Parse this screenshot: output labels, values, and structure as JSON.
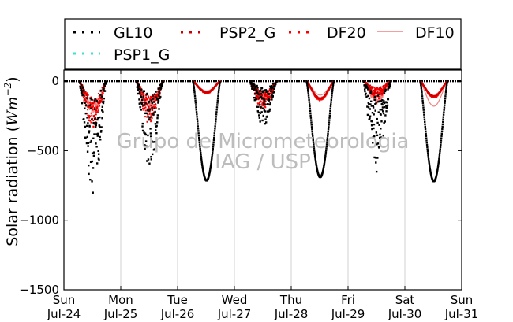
{
  "chart_data": {
    "type": "scatter",
    "ylabel_text": "Solar radiation (",
    "ylabel_unit": "Wm",
    "ylabel_exp": "−2",
    "ylabel_close": ")",
    "ylim": [
      -1500,
      80
    ],
    "yticks": [
      0,
      -500,
      -1000,
      -1500
    ],
    "ytick_labels": [
      "0",
      "−500",
      "−1000",
      "−1500"
    ],
    "xlim": [
      0,
      7
    ],
    "xticks": [
      0,
      1,
      2,
      3,
      4,
      5,
      6,
      7
    ],
    "xtick_labels": [
      [
        "Sun",
        "Jul-24"
      ],
      [
        "Mon",
        "Jul-25"
      ],
      [
        "Tue",
        "Jul-26"
      ],
      [
        "Wed",
        "Jul-27"
      ],
      [
        "Thu",
        "Jul-28"
      ],
      [
        "Fri",
        "Jul-29"
      ],
      [
        "Sat",
        "Jul-30"
      ],
      [
        "Sun",
        "Jul-31"
      ]
    ],
    "grid": "vertical",
    "legend_position": "top (outside plot)",
    "watermark": [
      "Grupo de Micrometeorologia",
      "IAG / USP"
    ],
    "series": [
      {
        "name": "GL10",
        "color": "#000000",
        "style": "dotted"
      },
      {
        "name": "PSP2_G",
        "color": "#cc0000",
        "style": "dotted"
      },
      {
        "name": "DF20",
        "color": "#ff0000",
        "style": "dotted"
      },
      {
        "name": "DF10",
        "color": "#f08080",
        "style": "line"
      },
      {
        "name": "PSP1_G",
        "color": "#40e0d0",
        "style": "dotted"
      }
    ],
    "days": [
      {
        "day": 0,
        "gl10_min": -820,
        "df20_min": -330,
        "df10_min": -240,
        "cloudy": true
      },
      {
        "day": 1,
        "gl10_min": -620,
        "df20_min": -310,
        "df10_min": -220,
        "cloudy": true
      },
      {
        "day": 2,
        "gl10_min": -715,
        "df20_min": -90,
        "df10_min": -70,
        "cloudy": false
      },
      {
        "day": 3,
        "gl10_min": -320,
        "df20_min": -210,
        "df10_min": -150,
        "cloudy": true
      },
      {
        "day": 4,
        "gl10_min": -690,
        "df20_min": -140,
        "df10_min": -100,
        "cloudy": false
      },
      {
        "day": 5,
        "gl10_min": -670,
        "df20_min": -130,
        "df10_min": -170,
        "cloudy": true
      },
      {
        "day": 6,
        "gl10_min": -720,
        "df20_min": -120,
        "df10_min": -180,
        "cloudy": false
      }
    ]
  }
}
